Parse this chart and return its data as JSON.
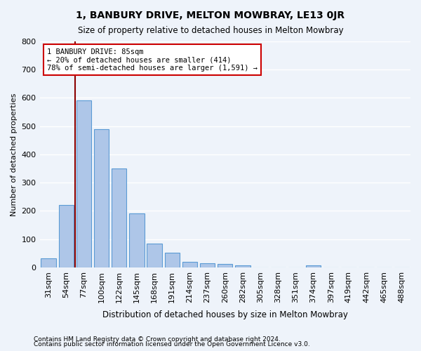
{
  "title": "1, BANBURY DRIVE, MELTON MOWBRAY, LE13 0JR",
  "subtitle": "Size of property relative to detached houses in Melton Mowbray",
  "xlabel": "Distribution of detached houses by size in Melton Mowbray",
  "ylabel": "Number of detached properties",
  "footnote1": "Contains HM Land Registry data © Crown copyright and database right 2024.",
  "footnote2": "Contains public sector information licensed under the Open Government Licence v3.0.",
  "bar_values": [
    32,
    220,
    590,
    490,
    350,
    190,
    85,
    52,
    20,
    15,
    12,
    8,
    0,
    0,
    0,
    8,
    0,
    0,
    0,
    0,
    0
  ],
  "categories": [
    "31sqm",
    "54sqm",
    "77sqm",
    "100sqm",
    "122sqm",
    "145sqm",
    "168sqm",
    "191sqm",
    "214sqm",
    "237sqm",
    "260sqm",
    "282sqm",
    "305sqm",
    "328sqm",
    "351sqm",
    "374sqm",
    "397sqm",
    "419sqm",
    "442sqm",
    "465sqm",
    "488sqm"
  ],
  "bar_color": "#aec6e8",
  "bar_edge_color": "#5b9bd5",
  "bg_color": "#eef3fa",
  "grid_color": "#ffffff",
  "vline_color": "#8b0000",
  "annotation_text": "1 BANBURY DRIVE: 85sqm\n← 20% of detached houses are smaller (414)\n78% of semi-detached houses are larger (1,591) →",
  "annotation_box_color": "#ffffff",
  "annotation_box_edge": "#cc0000",
  "ylim": [
    0,
    800
  ],
  "yticks": [
    0,
    100,
    200,
    300,
    400,
    500,
    600,
    700,
    800
  ]
}
